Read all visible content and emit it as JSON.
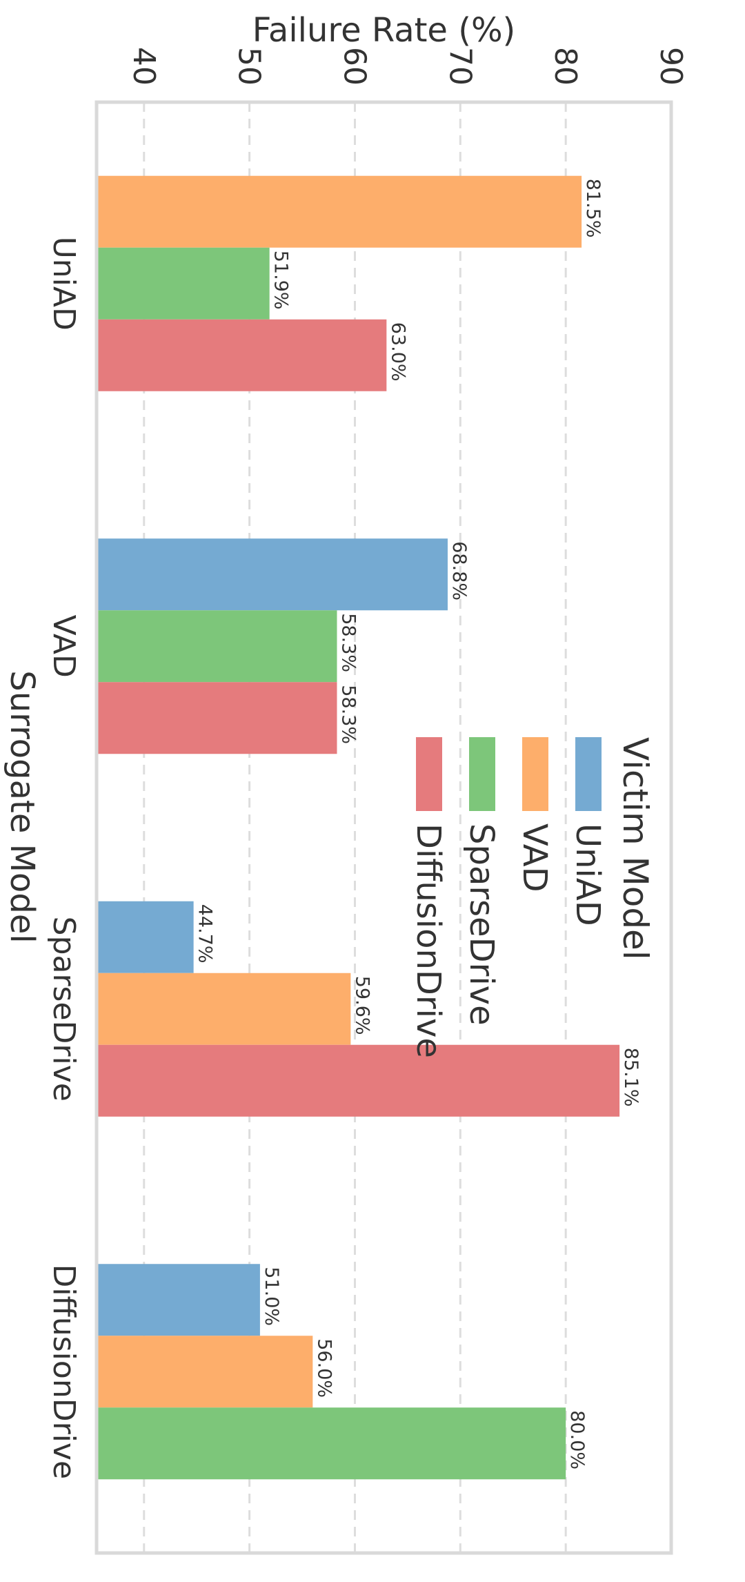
{
  "chart_data": {
    "type": "bar",
    "orientation": "vertical (rendered rotated 90° clockwise)",
    "xlabel": "Surrogate Model",
    "ylabel": "Failure Rate (%)",
    "ylim": [
      35.5,
      90
    ],
    "yticks": [
      40,
      50,
      60,
      70,
      80,
      90
    ],
    "grid": "dashed horizontal",
    "categories": [
      "UniAD",
      "VAD",
      "SparseDrive",
      "DiffusionDrive"
    ],
    "legend": {
      "title": "Victim Model",
      "placement": "upper-right"
    },
    "series": [
      {
        "name": "UniAD",
        "color": "#75aad2",
        "values": [
          null,
          68.8,
          44.7,
          51.0
        ],
        "labels": [
          "",
          "68.8%",
          "44.7%",
          "51.0%"
        ]
      },
      {
        "name": "VAD",
        "color": "#fdae6b",
        "values": [
          81.5,
          null,
          59.6,
          56.0
        ],
        "labels": [
          "81.5%",
          "",
          "59.6%",
          "56.0%"
        ]
      },
      {
        "name": "SparseDrive",
        "color": "#7dc67a",
        "values": [
          51.9,
          58.3,
          null,
          80.0
        ],
        "labels": [
          "51.9%",
          "58.3%",
          "",
          "80.0%"
        ]
      },
      {
        "name": "DiffusionDrive",
        "color": "#e57b7d",
        "values": [
          63.0,
          58.3,
          85.1,
          null
        ],
        "labels": [
          "63.0%",
          "58.3%",
          "85.1%",
          ""
        ]
      }
    ]
  }
}
